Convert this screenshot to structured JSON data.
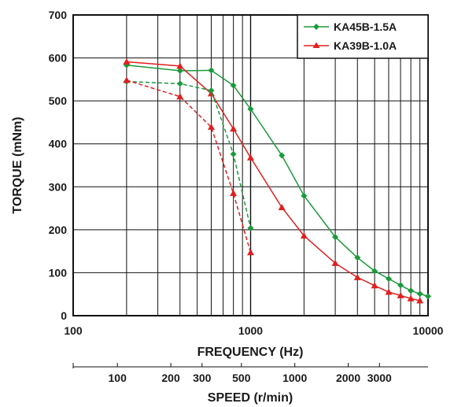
{
  "chart_data": {
    "type": "line",
    "x_scale": "log",
    "xlabel": "FREQUENCY (Hz)",
    "ylabel": "TORQUE (mNm)",
    "xlim": [
      100,
      10000
    ],
    "ylim": [
      0,
      700
    ],
    "x_ticks": [
      {
        "value": 100,
        "label": "100"
      },
      {
        "value": 1000,
        "label": "1000"
      },
      {
        "value": 10000,
        "label": "10000"
      }
    ],
    "y_ticks": [
      {
        "value": 0,
        "label": "0"
      },
      {
        "value": 100,
        "label": "100"
      },
      {
        "value": 200,
        "label": "200"
      },
      {
        "value": 300,
        "label": "300"
      },
      {
        "value": 400,
        "label": "400"
      },
      {
        "value": 500,
        "label": "500"
      },
      {
        "value": 600,
        "label": "600"
      },
      {
        "value": 700,
        "label": "700"
      }
    ],
    "grid": "vertical log decades plus horizontal every 100",
    "legend_position": "top-right",
    "secondary_axis": {
      "title": "SPEED (r/min)",
      "ticks": [
        {
          "label": "100",
          "freq": 500
        },
        {
          "label": "200",
          "freq": 1000
        },
        {
          "label": "300",
          "freq": 1500
        },
        {
          "label": "500",
          "freq": 2500
        },
        {
          "label": "1000",
          "freq": 5000
        },
        {
          "label": "2000",
          "freq": 10000
        },
        {
          "label": "3000",
          "freq": 15000
        }
      ]
    },
    "series": [
      {
        "name": "KA45B-1.5A",
        "color": "#1a9a3c",
        "marker": "diamond",
        "line_style": "solid",
        "x": [
          200,
          400,
          600,
          800,
          1000,
          1500,
          2000,
          3000,
          4000,
          5000,
          6000,
          7000,
          8000,
          9000,
          10000
        ],
        "y": [
          583,
          570,
          571,
          536,
          481,
          373,
          279,
          183,
          135,
          104,
          86,
          71,
          58,
          51,
          45
        ]
      },
      {
        "name": "KA39B-1.0A",
        "color": "#e02020",
        "marker": "triangle",
        "line_style": "solid",
        "x": [
          200,
          400,
          600,
          800,
          1000,
          1500,
          2000,
          3000,
          4000,
          5000,
          6000,
          7000,
          8000,
          9000
        ],
        "y": [
          591,
          581,
          517,
          435,
          368,
          252,
          186,
          122,
          89,
          70,
          55,
          47,
          40,
          35
        ]
      },
      {
        "name": "",
        "color": "#1a9a3c",
        "marker": "diamond",
        "line_style": "dashed",
        "x": [
          200,
          400,
          600,
          800,
          1000
        ],
        "y": [
          545,
          540,
          524,
          376,
          204
        ]
      },
      {
        "name": "",
        "color": "#e02020",
        "marker": "triangle",
        "line_style": "dashed",
        "x": [
          200,
          400,
          600,
          800,
          1000
        ],
        "y": [
          548,
          510,
          439,
          285,
          147
        ]
      }
    ]
  }
}
